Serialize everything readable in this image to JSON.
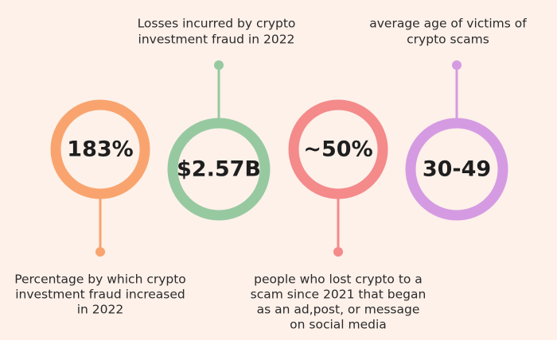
{
  "items": [
    {
      "value": "183%",
      "caption": [
        "Percentage by which crypto",
        "investment fraud increased",
        "in 2022"
      ]
    },
    {
      "value": "$2.57B",
      "caption": [
        "Losses incurred by crypto",
        "investment fraud in 2022"
      ]
    },
    {
      "value": "~50%",
      "caption": [
        "people who lost crypto to a",
        "scam since 2021 that began",
        "as an ad,post, or message",
        "on social media"
      ]
    },
    {
      "value": "30-49",
      "caption": [
        "average age of victims of",
        "crypto scams"
      ]
    }
  ]
}
